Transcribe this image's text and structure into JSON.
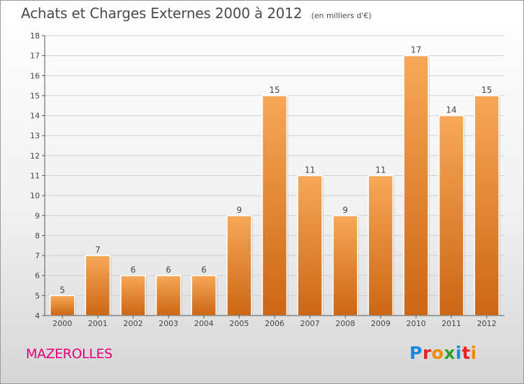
{
  "header": {
    "title": "Achats et Charges Externes 2000 à 2012",
    "subtitle": "(en milliers d'€)"
  },
  "footer": {
    "commune": "MAZEROLLES",
    "logo_text": "Proxiti"
  },
  "colors": {
    "bar_top": "#f7a857",
    "bar_bottom": "#cc6614",
    "commune": "#e0007a",
    "logo_letters": [
      "#1e88d8",
      "#e52421",
      "#f08a00",
      "#2ca02c",
      "#1e88d8",
      "#e52421",
      "#f08a00"
    ]
  },
  "chart_data": {
    "type": "bar",
    "categories": [
      "2000",
      "2001",
      "2002",
      "2003",
      "2004",
      "2005",
      "2006",
      "2007",
      "2008",
      "2009",
      "2010",
      "2011",
      "2012"
    ],
    "values": [
      5,
      7,
      6,
      6,
      6,
      9,
      15,
      11,
      9,
      11,
      17,
      14,
      15
    ],
    "ylim": [
      4,
      18
    ],
    "yticks": [
      4,
      5,
      6,
      7,
      8,
      9,
      10,
      11,
      12,
      13,
      14,
      15,
      16,
      17,
      18
    ],
    "grid": true,
    "data_labels": true
  }
}
